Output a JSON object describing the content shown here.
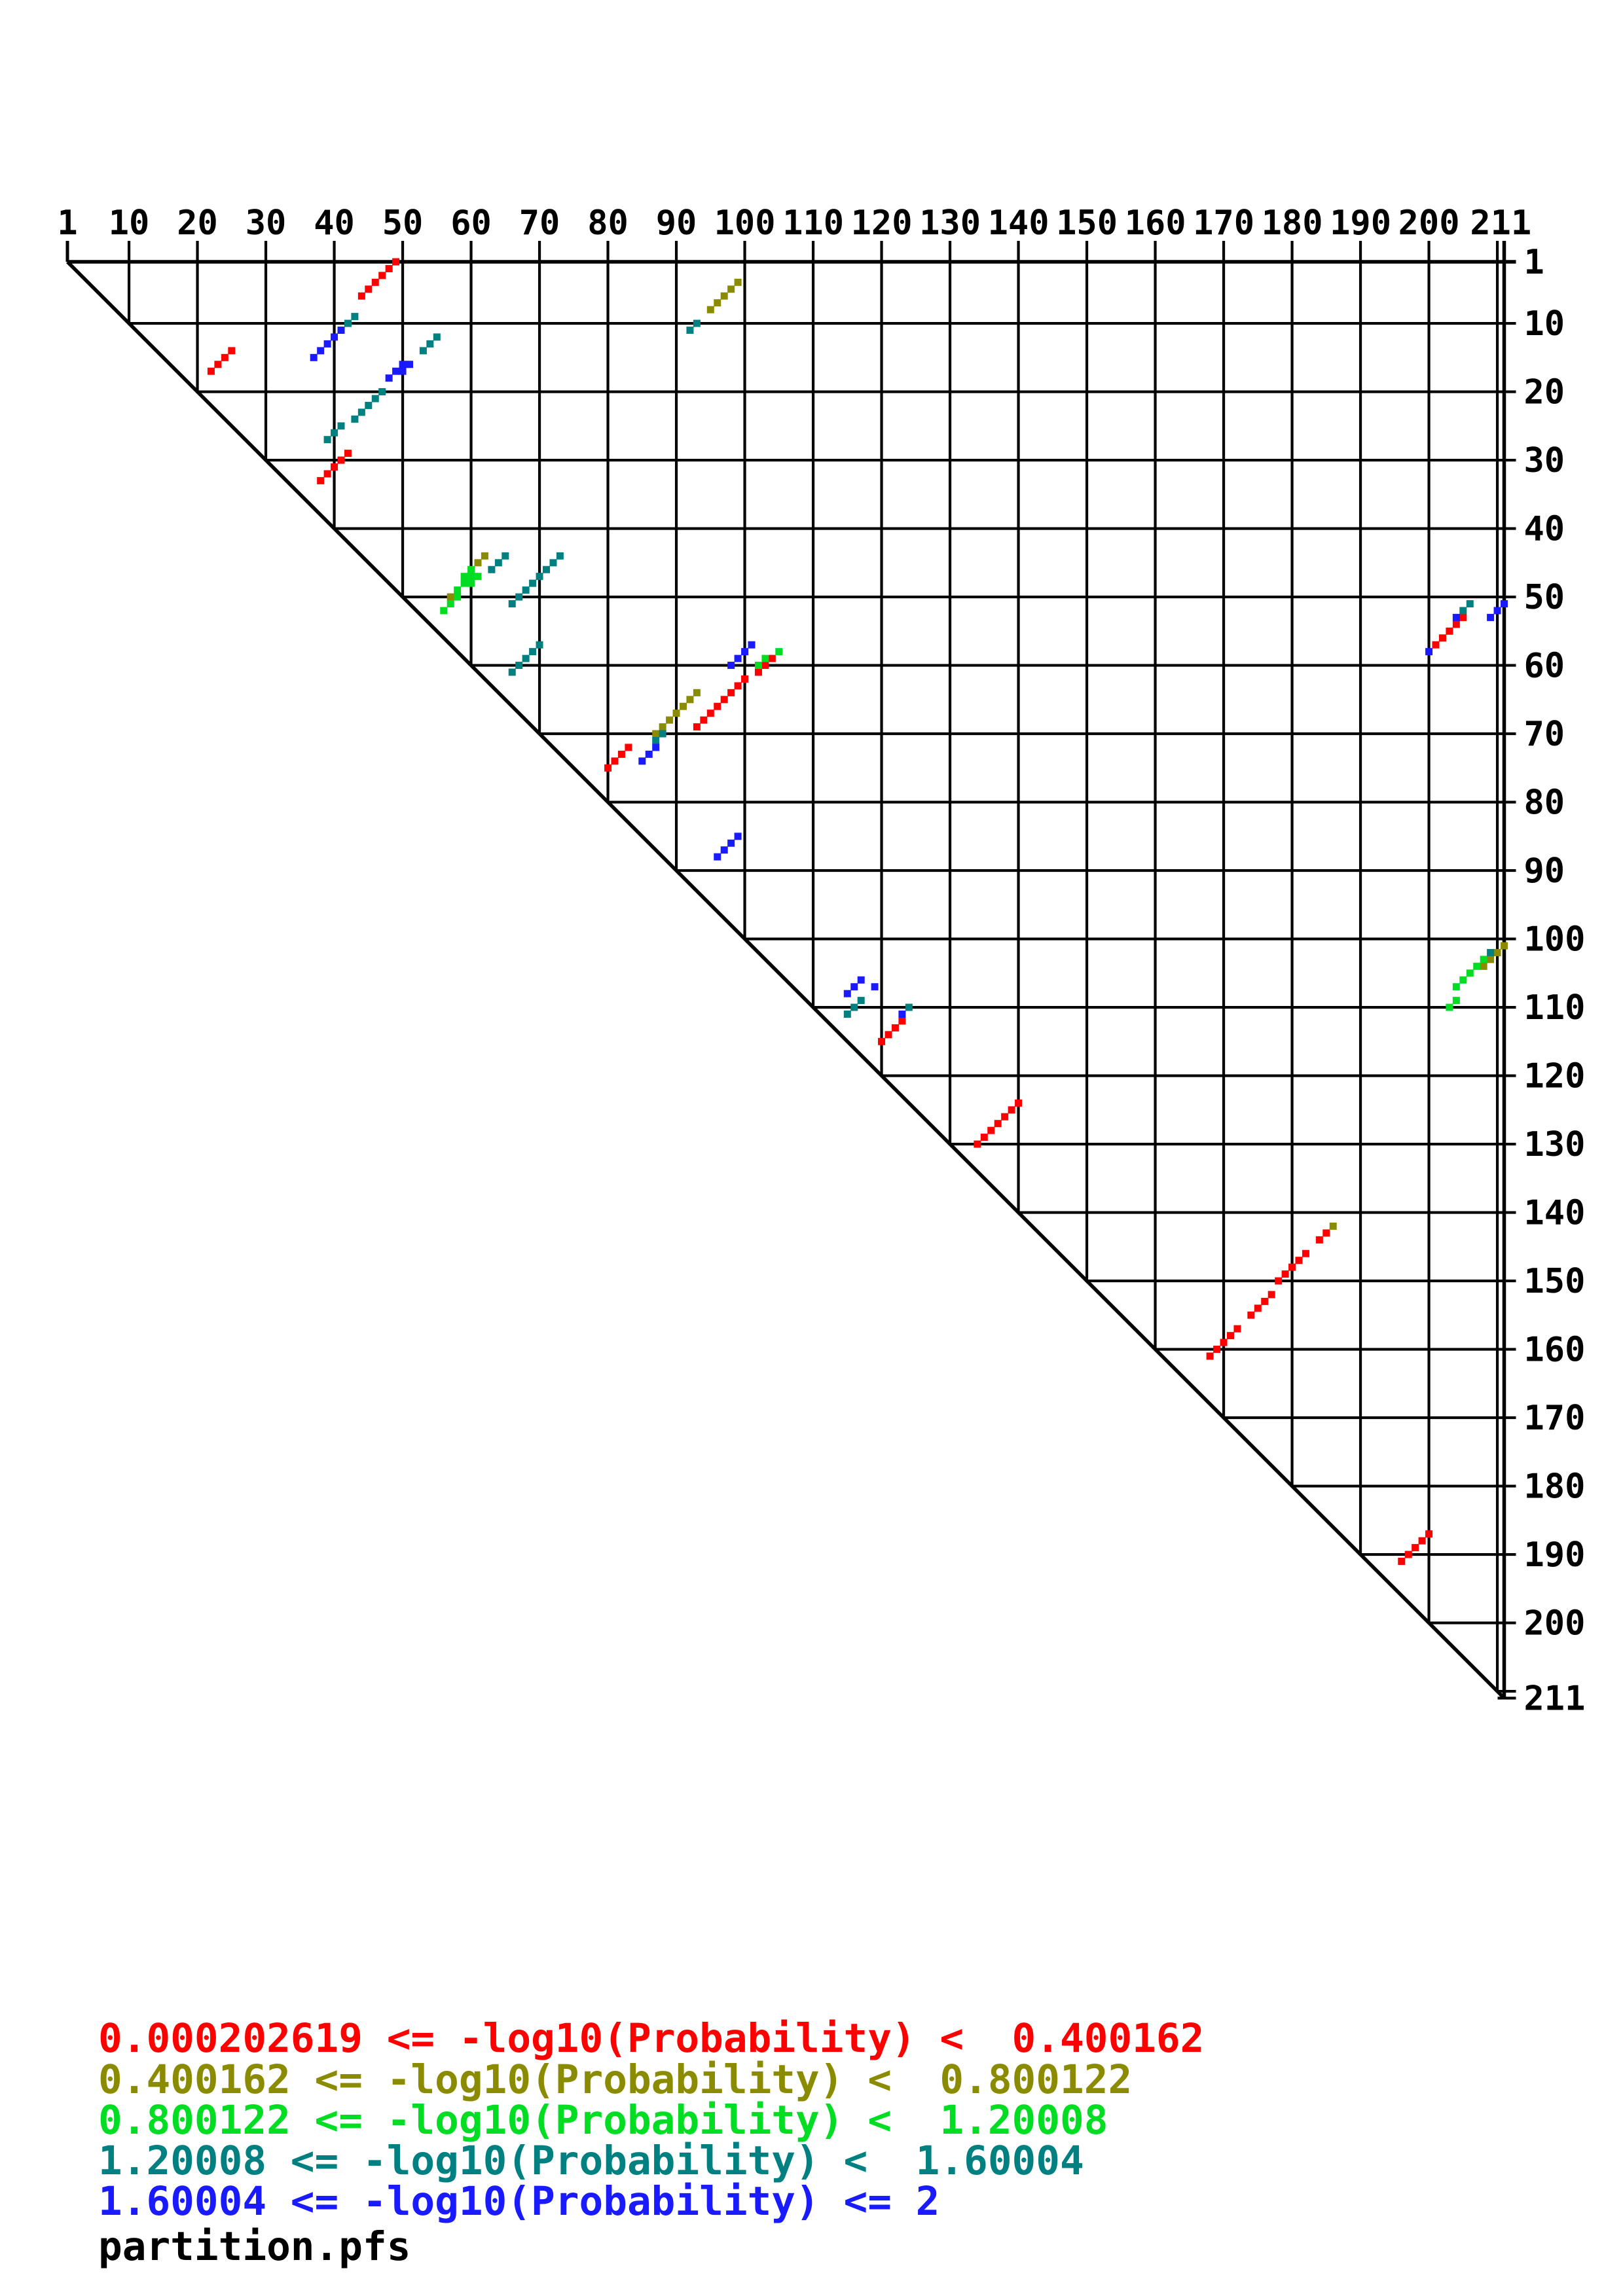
{
  "file_label": "partition.pfs",
  "axes": {
    "top_tick_labels": [
      "1",
      "10",
      "20",
      "30",
      "40",
      "50",
      "60",
      "70",
      "80",
      "90",
      "100",
      "110",
      "120",
      "130",
      "140",
      "150",
      "160",
      "170",
      "180",
      "190",
      "200",
      "211"
    ],
    "right_tick_labels": [
      "1",
      "10",
      "20",
      "30",
      "40",
      "50",
      "60",
      "70",
      "80",
      "90",
      "100",
      "110",
      "120",
      "130",
      "140",
      "150",
      "160",
      "170",
      "180",
      "190",
      "200",
      "211"
    ],
    "range_min": 1,
    "range_max": 211
  },
  "legend": {
    "lines": [
      {
        "text": "0.000202619 <= -log10(Probability) <  0.400162",
        "color": "#ff0000"
      },
      {
        "text": "0.400162 <= -log10(Probability) <  0.800122",
        "color": "#8b8b00"
      },
      {
        "text": "0.800122 <= -log10(Probability) <  1.20008",
        "color": "#00dd22"
      },
      {
        "text": "1.20008 <= -log10(Probability) <  1.60004",
        "color": "#008080"
      },
      {
        "text": "1.60004 <= -log10(Probability) <= 2",
        "color": "#1a1aff"
      }
    ]
  },
  "chart_data": {
    "type": "scatter",
    "description": "Triangular RNA partition-function base-pair probability dot plot; x = residue i (top axis 1-211), y = residue j (right axis 1-211); colors bin -log10(pair probability).",
    "x_range": [
      1,
      211
    ],
    "y_range": [
      1,
      211
    ],
    "grid_step": 10,
    "series": [
      {
        "name": "0.000202619 <= -log10(Probability) <  0.400162",
        "color": "#ff0000",
        "points": [
          [
            49,
            1
          ],
          [
            48,
            2
          ],
          [
            47,
            3
          ],
          [
            46,
            4
          ],
          [
            45,
            5
          ],
          [
            44,
            6
          ],
          [
            25,
            14
          ],
          [
            24,
            15
          ],
          [
            23,
            16
          ],
          [
            22,
            17
          ],
          [
            42,
            29
          ],
          [
            41,
            30
          ],
          [
            40,
            31
          ],
          [
            39,
            32
          ],
          [
            38,
            33
          ],
          [
            205,
            53
          ],
          [
            204,
            54
          ],
          [
            203,
            55
          ],
          [
            202,
            56
          ],
          [
            201,
            57
          ],
          [
            104,
            59
          ],
          [
            103,
            60
          ],
          [
            102,
            61
          ],
          [
            100,
            62
          ],
          [
            99,
            63
          ],
          [
            98,
            64
          ],
          [
            97,
            65
          ],
          [
            96,
            66
          ],
          [
            95,
            67
          ],
          [
            94,
            68
          ],
          [
            93,
            69
          ],
          [
            83,
            72
          ],
          [
            82,
            73
          ],
          [
            81,
            74
          ],
          [
            80,
            75
          ],
          [
            123,
            112
          ],
          [
            122,
            113
          ],
          [
            121,
            114
          ],
          [
            120,
            115
          ],
          [
            140,
            124
          ],
          [
            139,
            125
          ],
          [
            138,
            126
          ],
          [
            137,
            127
          ],
          [
            136,
            128
          ],
          [
            135,
            129
          ],
          [
            134,
            130
          ],
          [
            185,
            143
          ],
          [
            184,
            144
          ],
          [
            182,
            146
          ],
          [
            181,
            147
          ],
          [
            180,
            148
          ],
          [
            179,
            149
          ],
          [
            178,
            150
          ],
          [
            177,
            152
          ],
          [
            176,
            153
          ],
          [
            175,
            154
          ],
          [
            174,
            155
          ],
          [
            172,
            157
          ],
          [
            171,
            158
          ],
          [
            170,
            159
          ],
          [
            169,
            160
          ],
          [
            168,
            161
          ],
          [
            200,
            187
          ],
          [
            199,
            188
          ],
          [
            198,
            189
          ],
          [
            197,
            190
          ],
          [
            196,
            191
          ]
        ]
      },
      {
        "name": "0.400162 <= -log10(Probability) <  0.800122",
        "color": "#8b8b00",
        "points": [
          [
            99,
            4
          ],
          [
            98,
            5
          ],
          [
            97,
            6
          ],
          [
            96,
            7
          ],
          [
            95,
            8
          ],
          [
            62,
            44
          ],
          [
            61,
            45
          ],
          [
            57,
            50
          ],
          [
            93,
            64
          ],
          [
            92,
            65
          ],
          [
            91,
            66
          ],
          [
            90,
            67
          ],
          [
            89,
            68
          ],
          [
            88,
            69
          ],
          [
            87,
            70
          ],
          [
            211,
            101
          ],
          [
            210,
            102
          ],
          [
            209,
            103
          ],
          [
            208,
            104
          ],
          [
            186,
            142
          ]
        ]
      },
      {
        "name": "0.800122 <= -log10(Probability) <  1.20008",
        "color": "#00dd22",
        "points": [
          [
            60,
            46
          ],
          [
            61,
            47
          ],
          [
            60,
            47
          ],
          [
            59,
            47
          ],
          [
            60,
            48
          ],
          [
            59,
            48
          ],
          [
            58,
            49
          ],
          [
            58,
            50
          ],
          [
            57,
            51
          ],
          [
            56,
            52
          ],
          [
            105,
            58
          ],
          [
            103,
            59
          ],
          [
            102,
            60
          ],
          [
            208,
            103
          ],
          [
            207,
            104
          ],
          [
            206,
            105
          ],
          [
            205,
            106
          ],
          [
            204,
            107
          ],
          [
            204,
            109
          ],
          [
            203,
            110
          ]
        ]
      },
      {
        "name": "1.20008 <= -log10(Probability) <  1.60004",
        "color": "#008080",
        "points": [
          [
            43,
            9
          ],
          [
            42,
            10
          ],
          [
            93,
            10
          ],
          [
            92,
            11
          ],
          [
            55,
            12
          ],
          [
            54,
            13
          ],
          [
            53,
            14
          ],
          [
            47,
            20
          ],
          [
            46,
            21
          ],
          [
            45,
            22
          ],
          [
            44,
            23
          ],
          [
            43,
            24
          ],
          [
            41,
            25
          ],
          [
            40,
            26
          ],
          [
            39,
            27
          ],
          [
            65,
            44
          ],
          [
            64,
            45
          ],
          [
            63,
            46
          ],
          [
            73,
            44
          ],
          [
            72,
            45
          ],
          [
            71,
            46
          ],
          [
            70,
            47
          ],
          [
            69,
            48
          ],
          [
            68,
            49
          ],
          [
            67,
            50
          ],
          [
            66,
            51
          ],
          [
            70,
            57
          ],
          [
            69,
            58
          ],
          [
            68,
            59
          ],
          [
            67,
            60
          ],
          [
            66,
            61
          ],
          [
            206,
            51
          ],
          [
            205,
            52
          ],
          [
            88,
            70
          ],
          [
            87,
            71
          ],
          [
            209,
            102
          ],
          [
            117,
            109
          ],
          [
            116,
            110
          ],
          [
            115,
            111
          ],
          [
            124,
            110
          ]
        ]
      },
      {
        "name": "1.60004 <= -log10(Probability) <= 2",
        "color": "#1a1aff",
        "points": [
          [
            41,
            11
          ],
          [
            40,
            12
          ],
          [
            39,
            13
          ],
          [
            38,
            14
          ],
          [
            37,
            15
          ],
          [
            51,
            16
          ],
          [
            50,
            16
          ],
          [
            50,
            17
          ],
          [
            49,
            17
          ],
          [
            48,
            18
          ],
          [
            211,
            51
          ],
          [
            210,
            52
          ],
          [
            209,
            53
          ],
          [
            204,
            53
          ],
          [
            200,
            58
          ],
          [
            101,
            57
          ],
          [
            100,
            58
          ],
          [
            99,
            59
          ],
          [
            98,
            60
          ],
          [
            87,
            72
          ],
          [
            86,
            73
          ],
          [
            85,
            74
          ],
          [
            99,
            85
          ],
          [
            98,
            86
          ],
          [
            97,
            87
          ],
          [
            96,
            88
          ],
          [
            117,
            106
          ],
          [
            116,
            107
          ],
          [
            119,
            107
          ],
          [
            115,
            108
          ],
          [
            123,
            111
          ]
        ]
      }
    ],
    "title": "",
    "xlabel": "",
    "ylabel": "",
    "footer": "partition.pfs"
  }
}
